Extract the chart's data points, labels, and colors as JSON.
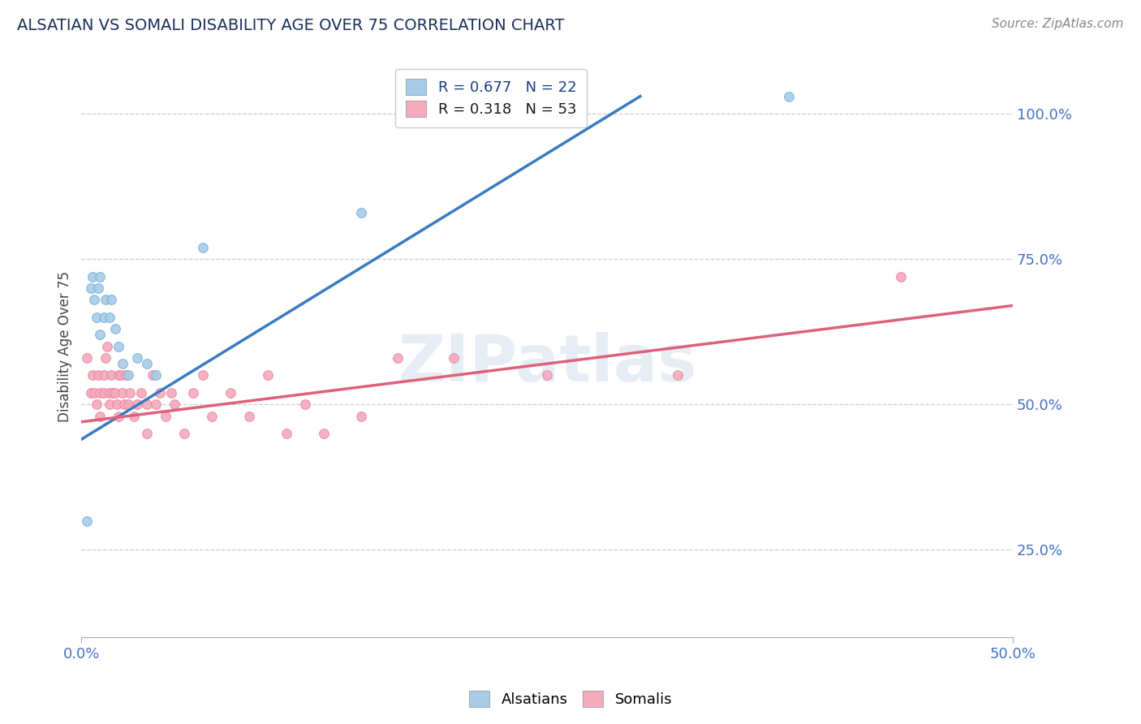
{
  "title": "ALSATIAN VS SOMALI DISABILITY AGE OVER 75 CORRELATION CHART",
  "source": "Source: ZipAtlas.com",
  "ylabel": "Disability Age Over 75",
  "xlim": [
    0.0,
    0.5
  ],
  "ylim": [
    0.1,
    1.1
  ],
  "ytick_positions": [
    0.25,
    0.5,
    0.75,
    1.0
  ],
  "ytick_labels": [
    "25.0%",
    "50.0%",
    "75.0%",
    "100.0%"
  ],
  "xtick_positions": [
    0.0,
    0.5
  ],
  "xtick_labels": [
    "0.0%",
    "50.0%"
  ],
  "legend_alsatians": "R = 0.677   N = 22",
  "legend_somalis": "R = 0.318   N = 53",
  "alsatian_color": "#a8cce8",
  "somali_color": "#f4aabc",
  "alsatian_edge_color": "#7ab0d4",
  "somali_edge_color": "#e88aa0",
  "alsatian_line_color": "#3a7bbf",
  "somali_line_color": "#e0607a",
  "watermark": "ZIPatlas",
  "background_color": "#ffffff",
  "grid_color": "#cccccc",
  "alsatian_scatter_x": [
    0.003,
    0.005,
    0.006,
    0.007,
    0.008,
    0.009,
    0.01,
    0.01,
    0.012,
    0.013,
    0.015,
    0.016,
    0.018,
    0.02,
    0.022,
    0.025,
    0.03,
    0.035,
    0.04,
    0.065,
    0.15,
    0.38
  ],
  "alsatian_scatter_y": [
    0.3,
    0.7,
    0.72,
    0.68,
    0.65,
    0.7,
    0.72,
    0.62,
    0.65,
    0.68,
    0.65,
    0.68,
    0.63,
    0.6,
    0.57,
    0.55,
    0.58,
    0.57,
    0.55,
    0.77,
    0.83,
    1.03
  ],
  "somali_scatter_x": [
    0.003,
    0.005,
    0.006,
    0.007,
    0.008,
    0.009,
    0.01,
    0.01,
    0.012,
    0.012,
    0.013,
    0.014,
    0.015,
    0.015,
    0.016,
    0.017,
    0.018,
    0.019,
    0.02,
    0.02,
    0.021,
    0.022,
    0.023,
    0.024,
    0.025,
    0.026,
    0.028,
    0.03,
    0.032,
    0.035,
    0.035,
    0.038,
    0.04,
    0.042,
    0.045,
    0.048,
    0.05,
    0.055,
    0.06,
    0.065,
    0.07,
    0.08,
    0.09,
    0.1,
    0.11,
    0.12,
    0.13,
    0.15,
    0.17,
    0.2,
    0.25,
    0.32,
    0.44
  ],
  "somali_scatter_y": [
    0.58,
    0.52,
    0.55,
    0.52,
    0.5,
    0.55,
    0.52,
    0.48,
    0.55,
    0.52,
    0.58,
    0.6,
    0.5,
    0.52,
    0.55,
    0.52,
    0.52,
    0.5,
    0.55,
    0.48,
    0.55,
    0.52,
    0.5,
    0.55,
    0.5,
    0.52,
    0.48,
    0.5,
    0.52,
    0.5,
    0.45,
    0.55,
    0.5,
    0.52,
    0.48,
    0.52,
    0.5,
    0.45,
    0.52,
    0.55,
    0.48,
    0.52,
    0.48,
    0.55,
    0.45,
    0.5,
    0.45,
    0.48,
    0.58,
    0.58,
    0.55,
    0.55,
    0.72
  ],
  "alsatian_line_x": [
    0.0,
    0.3
  ],
  "alsatian_line_y": [
    0.44,
    1.03
  ],
  "somali_line_x": [
    0.0,
    0.5
  ],
  "somali_line_y": [
    0.47,
    0.67
  ]
}
